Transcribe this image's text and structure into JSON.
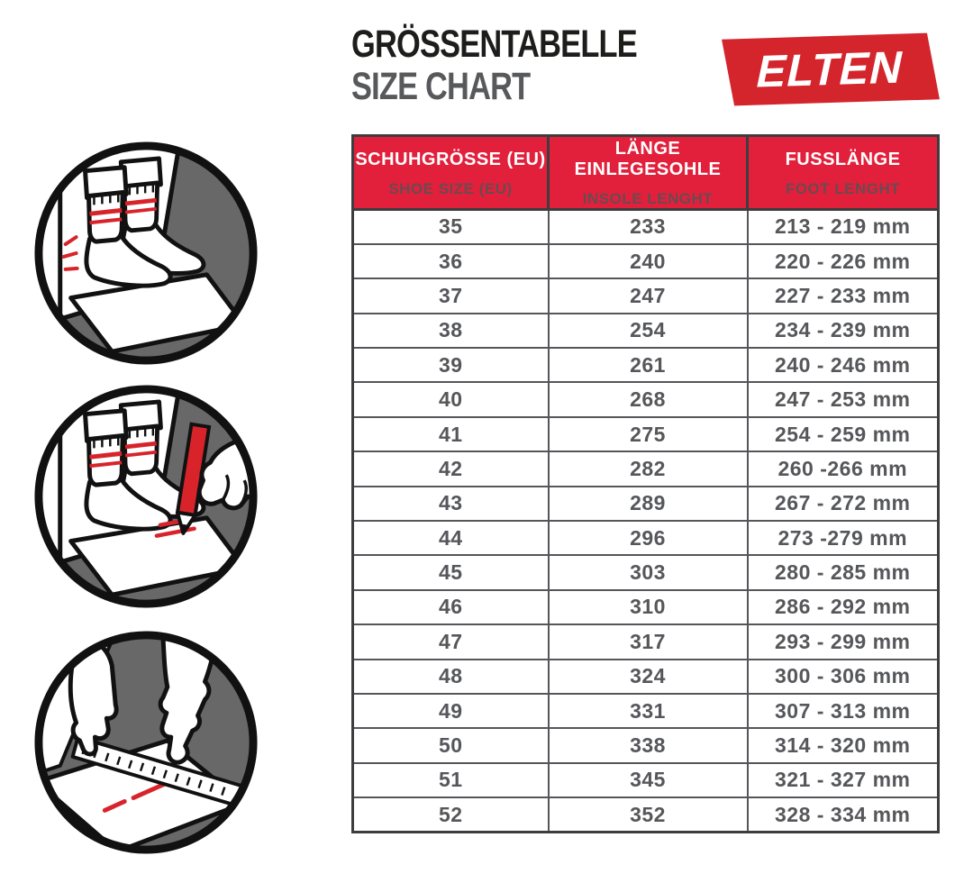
{
  "page": {
    "title_de": "GRÖSSENTABELLE",
    "title_en": "SIZE CHART",
    "brand": "ELTEN"
  },
  "colors": {
    "logo_red": "#d4252c",
    "header_red": "#e2203c",
    "title_black": "#1d1d1b",
    "title_gray": "#58595b",
    "cell_text_gray": "#56575a",
    "header_sub_text": "#6b4a50",
    "illustration_gray": "#686868",
    "accent_red": "#d8232a"
  },
  "table": {
    "columns": [
      {
        "de": "SCHUHGRÖSSE (EU)",
        "en": "SHOE SIZE (EU)"
      },
      {
        "de": "LÄNGE EINLEGESOHLE",
        "en": "INSOLE LENGHT"
      },
      {
        "de": "FUSSLÄNGE",
        "en": "FOOT LENGHT"
      }
    ],
    "rows": [
      [
        "35",
        "233",
        "213 - 219 mm"
      ],
      [
        "36",
        "240",
        "220 - 226 mm"
      ],
      [
        "37",
        "247",
        "227 - 233 mm"
      ],
      [
        "38",
        "254",
        "234 - 239 mm"
      ],
      [
        "39",
        "261",
        "240 - 246 mm"
      ],
      [
        "40",
        "268",
        "247 - 253 mm"
      ],
      [
        "41",
        "275",
        "254 - 259 mm"
      ],
      [
        "42",
        "282",
        "260 -266 mm"
      ],
      [
        "43",
        "289",
        "267 - 272 mm"
      ],
      [
        "44",
        "296",
        "273 -279 mm"
      ],
      [
        "45",
        "303",
        "280 - 285 mm"
      ],
      [
        "46",
        "310",
        "286 - 292 mm"
      ],
      [
        "47",
        "317",
        "293 - 299 mm"
      ],
      [
        "48",
        "324",
        "300 - 306 mm"
      ],
      [
        "49",
        "331",
        "307 - 313 mm"
      ],
      [
        "50",
        "338",
        "314 - 320 mm"
      ],
      [
        "51",
        "345",
        "321 - 327 mm"
      ],
      [
        "52",
        "352",
        "328 - 334 mm"
      ]
    ]
  },
  "illustrations": [
    {
      "name": "stand-heel-against-wall-icon"
    },
    {
      "name": "mark-toe-with-pencil-icon"
    },
    {
      "name": "measure-with-ruler-icon"
    }
  ]
}
